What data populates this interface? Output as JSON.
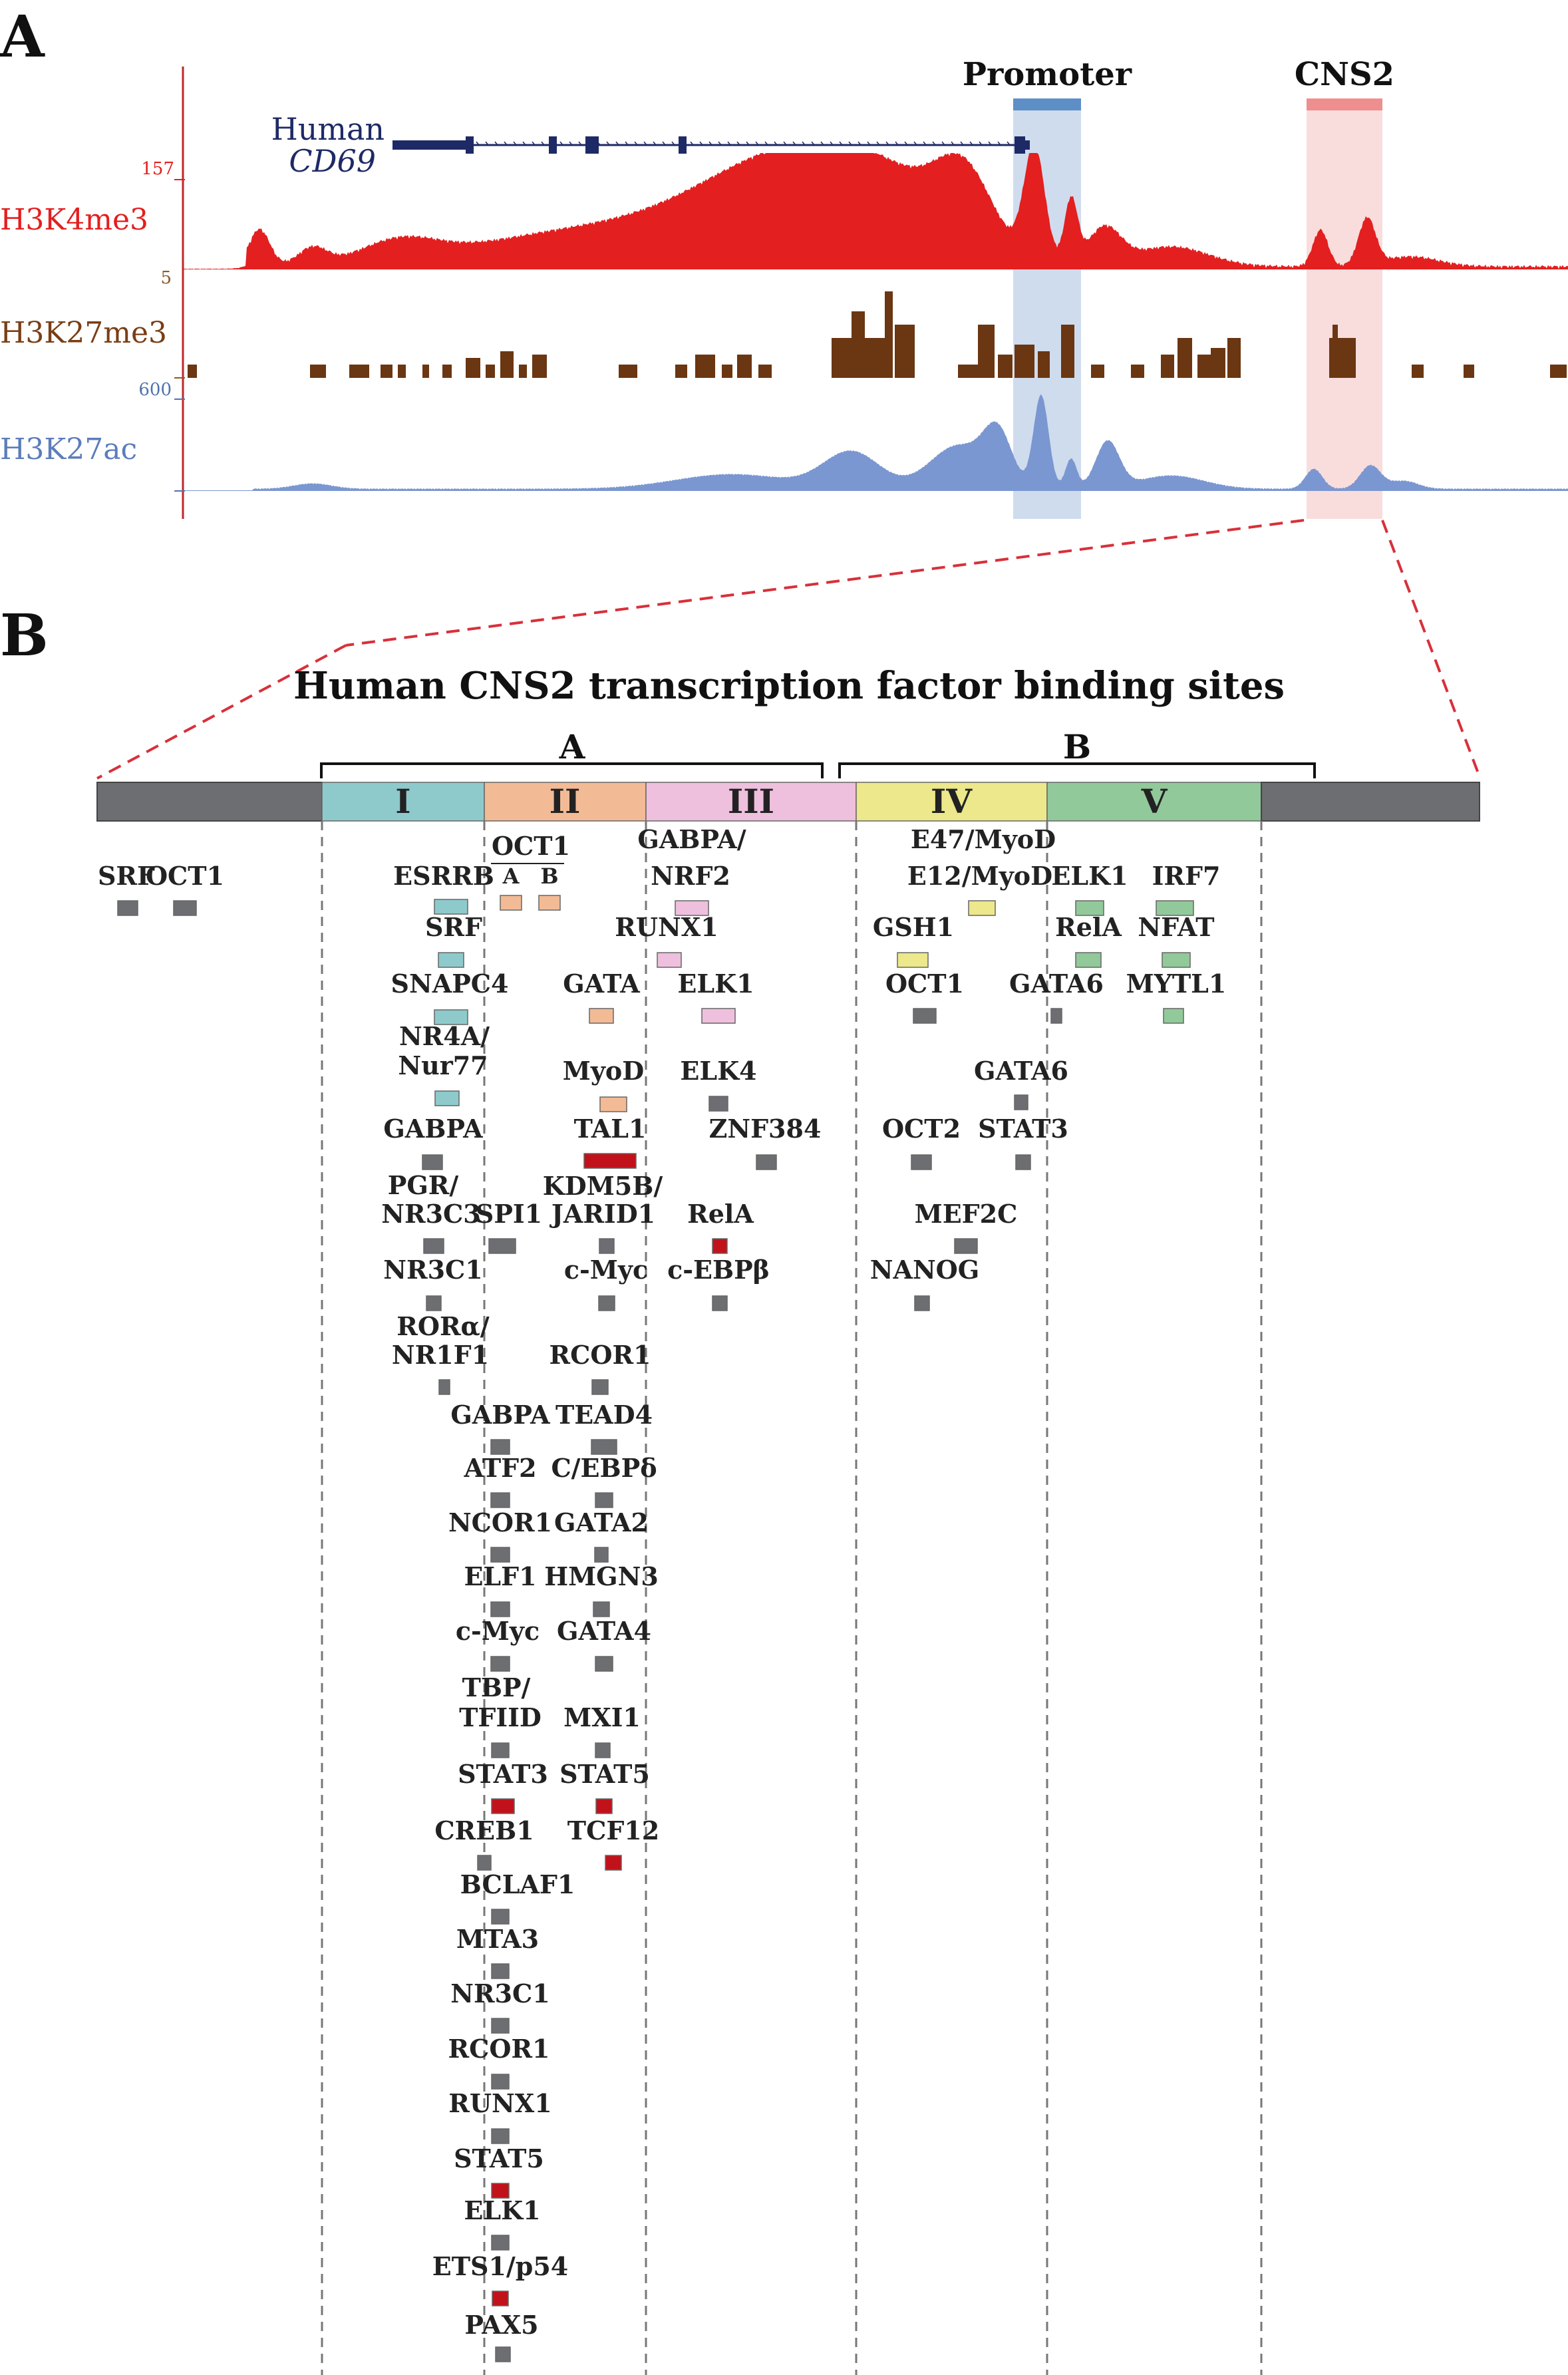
{
  "panel_a": {
    "letter": "A",
    "gene_label_line1": "Human",
    "gene_label_line2": "CD69",
    "promoter_label": "Promoter",
    "cns2_label": "CNS2",
    "tracks": [
      {
        "name": "H3K4me3",
        "max": "157",
        "min": "5",
        "color": "#e31f1f"
      },
      {
        "name": "H3K27me3",
        "max": "",
        "min": "",
        "color": "#6b3612"
      },
      {
        "name": "H3K27ac",
        "max": "600",
        "min": "",
        "color": "#6b8cc9"
      }
    ],
    "colors": {
      "h3k4me3": "#e31f1f",
      "h3k27me3": "#6b3612",
      "h3k27ac": "#7b97d1",
      "gene": "#1e2a66",
      "promoter_band": "#cfdcee",
      "promoter_bar": "#5d8fc6",
      "cns2_band": "#f8d7d7",
      "cns2_bar": "#ee8e8e",
      "left_axis": "#c0262a"
    }
  },
  "panel_b": {
    "letter": "B",
    "title": "Human CNS2 transcription factor binding sites",
    "group_a": "A",
    "group_b": "B",
    "regions": [
      {
        "label": "I",
        "color": "#8ecacb"
      },
      {
        "label": "II",
        "color": "#f2bb95"
      },
      {
        "label": "III",
        "color": "#eec0dd"
      },
      {
        "label": "IV",
        "color": "#ece88b"
      },
      {
        "label": "V",
        "color": "#92c99a"
      }
    ],
    "flank_color": "#6d6e72",
    "oct1_sub": [
      "A",
      "B"
    ],
    "sites": [
      {
        "label": "SRF",
        "color": "gray"
      },
      {
        "label": "OCT1",
        "color": "gray"
      },
      {
        "label": "ESRRB",
        "color": "teal"
      },
      {
        "label": "SRF",
        "color": "teal"
      },
      {
        "label": "SNAPC4",
        "color": "teal"
      },
      {
        "label": "NR4A/",
        "color": ""
      },
      {
        "label": "Nur77",
        "color": "teal"
      },
      {
        "label": "GABPA",
        "color": "gray"
      },
      {
        "label": "PGR/",
        "color": ""
      },
      {
        "label": "NR3C3",
        "color": "gray"
      },
      {
        "label": "SPI1",
        "color": "gray"
      },
      {
        "label": "NR3C1",
        "color": "gray"
      },
      {
        "label": "RORα/",
        "color": ""
      },
      {
        "label": "NR1F1",
        "color": "gray"
      },
      {
        "label": "GABPA",
        "color": "gray"
      },
      {
        "label": "ATF2",
        "color": "gray"
      },
      {
        "label": "NCOR1",
        "color": "gray"
      },
      {
        "label": "ELF1",
        "color": "gray"
      },
      {
        "label": "c-Myc",
        "color": "gray"
      },
      {
        "label": "TBP/",
        "color": ""
      },
      {
        "label": "TFIID",
        "color": "gray"
      },
      {
        "label": "STAT3",
        "color": "red"
      },
      {
        "label": "CREB1",
        "color": "gray"
      },
      {
        "label": "BCLAF1",
        "color": "gray"
      },
      {
        "label": "MTA3",
        "color": "gray"
      },
      {
        "label": "NR3C1",
        "color": "gray"
      },
      {
        "label": "RCOR1",
        "color": "gray"
      },
      {
        "label": "RUNX1",
        "color": "gray"
      },
      {
        "label": "STAT5",
        "color": "red"
      },
      {
        "label": "ELK1",
        "color": "gray"
      },
      {
        "label": "ETS1/p54",
        "color": "red"
      },
      {
        "label": "PAX5",
        "color": "gray"
      },
      {
        "label": "OCT1",
        "color": "peach"
      },
      {
        "label": "GATA",
        "color": "peach"
      },
      {
        "label": "MyoD",
        "color": "peach"
      },
      {
        "label": "TAL1",
        "color": "red"
      },
      {
        "label": "KDM5B/",
        "color": ""
      },
      {
        "label": "JARID1",
        "color": "gray"
      },
      {
        "label": "c-Myc",
        "color": "gray"
      },
      {
        "label": "RCOR1",
        "color": "gray"
      },
      {
        "label": "TEAD4",
        "color": "gray"
      },
      {
        "label": "C/EBPδ",
        "color": "gray"
      },
      {
        "label": "GATA2",
        "color": "gray"
      },
      {
        "label": "HMGN3",
        "color": "gray"
      },
      {
        "label": "GATA4",
        "color": "gray"
      },
      {
        "label": "MXI1",
        "color": "gray"
      },
      {
        "label": "STAT5",
        "color": "red"
      },
      {
        "label": "TCF12",
        "color": "red"
      },
      {
        "label": "GABPA/",
        "color": ""
      },
      {
        "label": "NRF2",
        "color": "pink"
      },
      {
        "label": "RUNX1",
        "color": "pink"
      },
      {
        "label": "ELK1",
        "color": "pink"
      },
      {
        "label": "ELK4",
        "color": "gray"
      },
      {
        "label": "ZNF384",
        "color": "gray"
      },
      {
        "label": "RelA",
        "color": "red"
      },
      {
        "label": "c-EBPβ",
        "color": "gray"
      },
      {
        "label": "E47/MyoD",
        "color": ""
      },
      {
        "label": "E12/MyoD",
        "color": "yellow"
      },
      {
        "label": "GSH1",
        "color": "yellow"
      },
      {
        "label": "OCT1",
        "color": "gray"
      },
      {
        "label": "OCT2",
        "color": "gray"
      },
      {
        "label": "MEF2C",
        "color": "gray"
      },
      {
        "label": "NANOG",
        "color": "gray"
      },
      {
        "label": "GATA6",
        "color": "gray"
      },
      {
        "label": "STAT3",
        "color": "gray"
      },
      {
        "label": "ELK1",
        "color": "green"
      },
      {
        "label": "RelA",
        "color": "green"
      },
      {
        "label": "GATA6",
        "color": "gray"
      },
      {
        "label": "IRF7",
        "color": "green"
      },
      {
        "label": "NFAT",
        "color": "green"
      },
      {
        "label": "MYTL1",
        "color": "green"
      }
    ],
    "box_colors": {
      "gray": "#6d6e72",
      "teal": "#8ecacb",
      "peach": "#f2bb95",
      "pink": "#eec0dd",
      "yellow": "#ece88b",
      "green": "#92c99a",
      "red": "#c1121b"
    }
  }
}
